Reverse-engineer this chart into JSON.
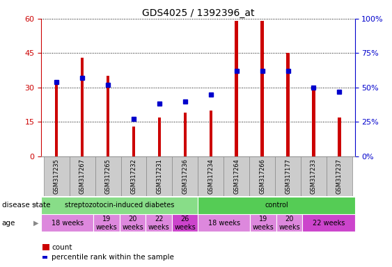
{
  "title": "GDS4025 / 1392396_at",
  "samples": [
    "GSM317235",
    "GSM317267",
    "GSM317265",
    "GSM317232",
    "GSM317231",
    "GSM317236",
    "GSM317234",
    "GSM317264",
    "GSM317266",
    "GSM317177",
    "GSM317233",
    "GSM317237"
  ],
  "bar_heights": [
    31,
    43,
    35,
    13,
    17,
    19,
    20,
    59,
    59,
    45,
    30,
    17
  ],
  "blue_markers_pct": [
    54,
    57,
    52,
    27,
    38,
    40,
    45,
    62,
    62,
    62,
    50,
    47
  ],
  "ylim_left": [
    0,
    60
  ],
  "ylim_right": [
    0,
    100
  ],
  "yticks_left": [
    0,
    15,
    30,
    45,
    60
  ],
  "yticks_right": [
    0,
    25,
    50,
    75,
    100
  ],
  "bar_color": "#cc0000",
  "marker_color": "#0000cc",
  "bar_width": 0.12,
  "disease_groups": [
    {
      "label": "streptozotocin-induced diabetes",
      "start": 0,
      "end": 6,
      "color": "#88dd88"
    },
    {
      "label": "control",
      "start": 6,
      "end": 12,
      "color": "#55cc55"
    }
  ],
  "age_groups": [
    {
      "label": "18 weeks",
      "start": 0,
      "end": 2,
      "color": "#dd88dd"
    },
    {
      "label": "19\nweeks",
      "start": 2,
      "end": 3,
      "color": "#dd88dd"
    },
    {
      "label": "20\nweeks",
      "start": 3,
      "end": 4,
      "color": "#dd88dd"
    },
    {
      "label": "22\nweeks",
      "start": 4,
      "end": 5,
      "color": "#dd88dd"
    },
    {
      "label": "26\nweeks",
      "start": 5,
      "end": 6,
      "color": "#cc44cc"
    },
    {
      "label": "18 weeks",
      "start": 6,
      "end": 8,
      "color": "#dd88dd"
    },
    {
      "label": "19\nweeks",
      "start": 8,
      "end": 9,
      "color": "#dd88dd"
    },
    {
      "label": "20\nweeks",
      "start": 9,
      "end": 10,
      "color": "#dd88dd"
    },
    {
      "label": "22 weeks",
      "start": 10,
      "end": 12,
      "color": "#cc44cc"
    }
  ],
  "tick_label_color_left": "#cc0000",
  "tick_label_color_right": "#0000cc",
  "grid_linestyle": "dotted",
  "label_fontsize": 7.5,
  "tick_fontsize": 8
}
